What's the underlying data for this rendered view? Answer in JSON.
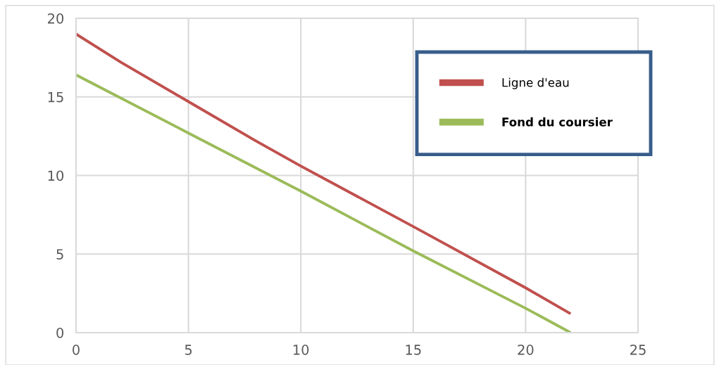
{
  "chart_data": {
    "type": "line",
    "x": [
      0,
      2,
      5,
      8,
      10,
      15,
      20,
      22
    ],
    "series": [
      {
        "name": "Ligne d'eau",
        "color": "#c0504d",
        "values": [
          19.0,
          17.2,
          14.7,
          12.2,
          10.6,
          6.75,
          2.85,
          1.2
        ]
      },
      {
        "name": "Fond du coursier",
        "color": "#9bbb59",
        "x": [
          0,
          5,
          10,
          15,
          20,
          22
        ],
        "values": [
          16.4,
          12.7,
          9.0,
          5.2,
          1.55,
          0
        ]
      }
    ],
    "xlim": [
      0,
      25
    ],
    "xticks": [
      0,
      5,
      10,
      15,
      20,
      25
    ],
    "ylim": [
      0,
      20
    ],
    "yticks": [
      0,
      5,
      10,
      15,
      20
    ],
    "grid": true,
    "legend": "top right",
    "marker": "none",
    "line_style": "solid"
  }
}
